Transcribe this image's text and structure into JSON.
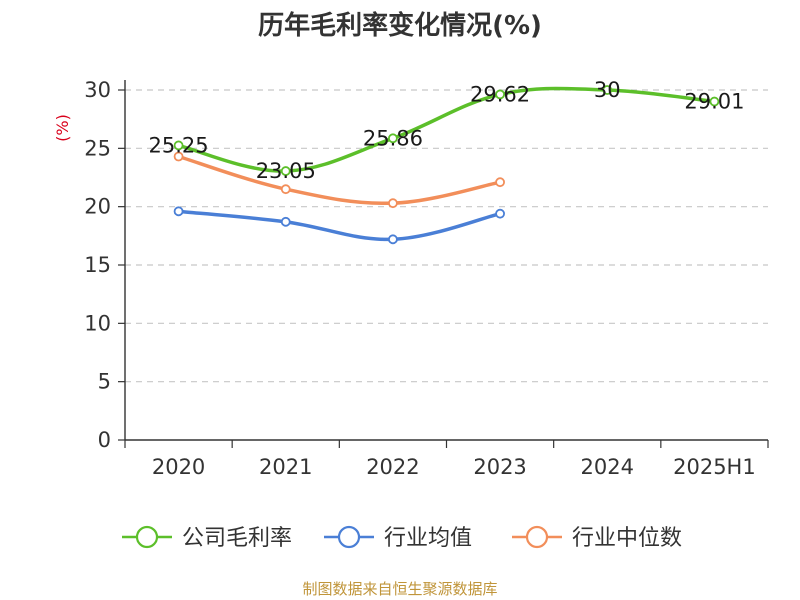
{
  "chart_data": {
    "type": "line",
    "title": "历年毛利率变化情况(%)",
    "ylabel": "(%)",
    "xlabel": "",
    "ylim": [
      0,
      30
    ],
    "yticks": [
      0,
      5,
      10,
      15,
      20,
      25,
      30
    ],
    "categories": [
      "2020",
      "2021",
      "2022",
      "2023",
      "2024",
      "2025H1"
    ],
    "grid": true,
    "legend_position": "bottom",
    "series": [
      {
        "name": "公司毛利率",
        "color": "#5cbf2a",
        "values": [
          25.25,
          23.05,
          25.86,
          29.62,
          30,
          29.01
        ],
        "labels": [
          "25.25",
          "23.05",
          "25.86",
          "29.62",
          "30",
          "29.01"
        ]
      },
      {
        "name": "行业均值",
        "color": "#4a7fd6",
        "values": [
          19.6,
          18.7,
          17.2,
          19.4,
          null,
          null
        ],
        "labels": []
      },
      {
        "name": "行业中位数",
        "color": "#f28e5a",
        "values": [
          24.3,
          21.5,
          20.3,
          22.1,
          null,
          null
        ],
        "labels": []
      }
    ]
  },
  "footer": {
    "source": "制图数据来自恒生聚源数据库"
  }
}
